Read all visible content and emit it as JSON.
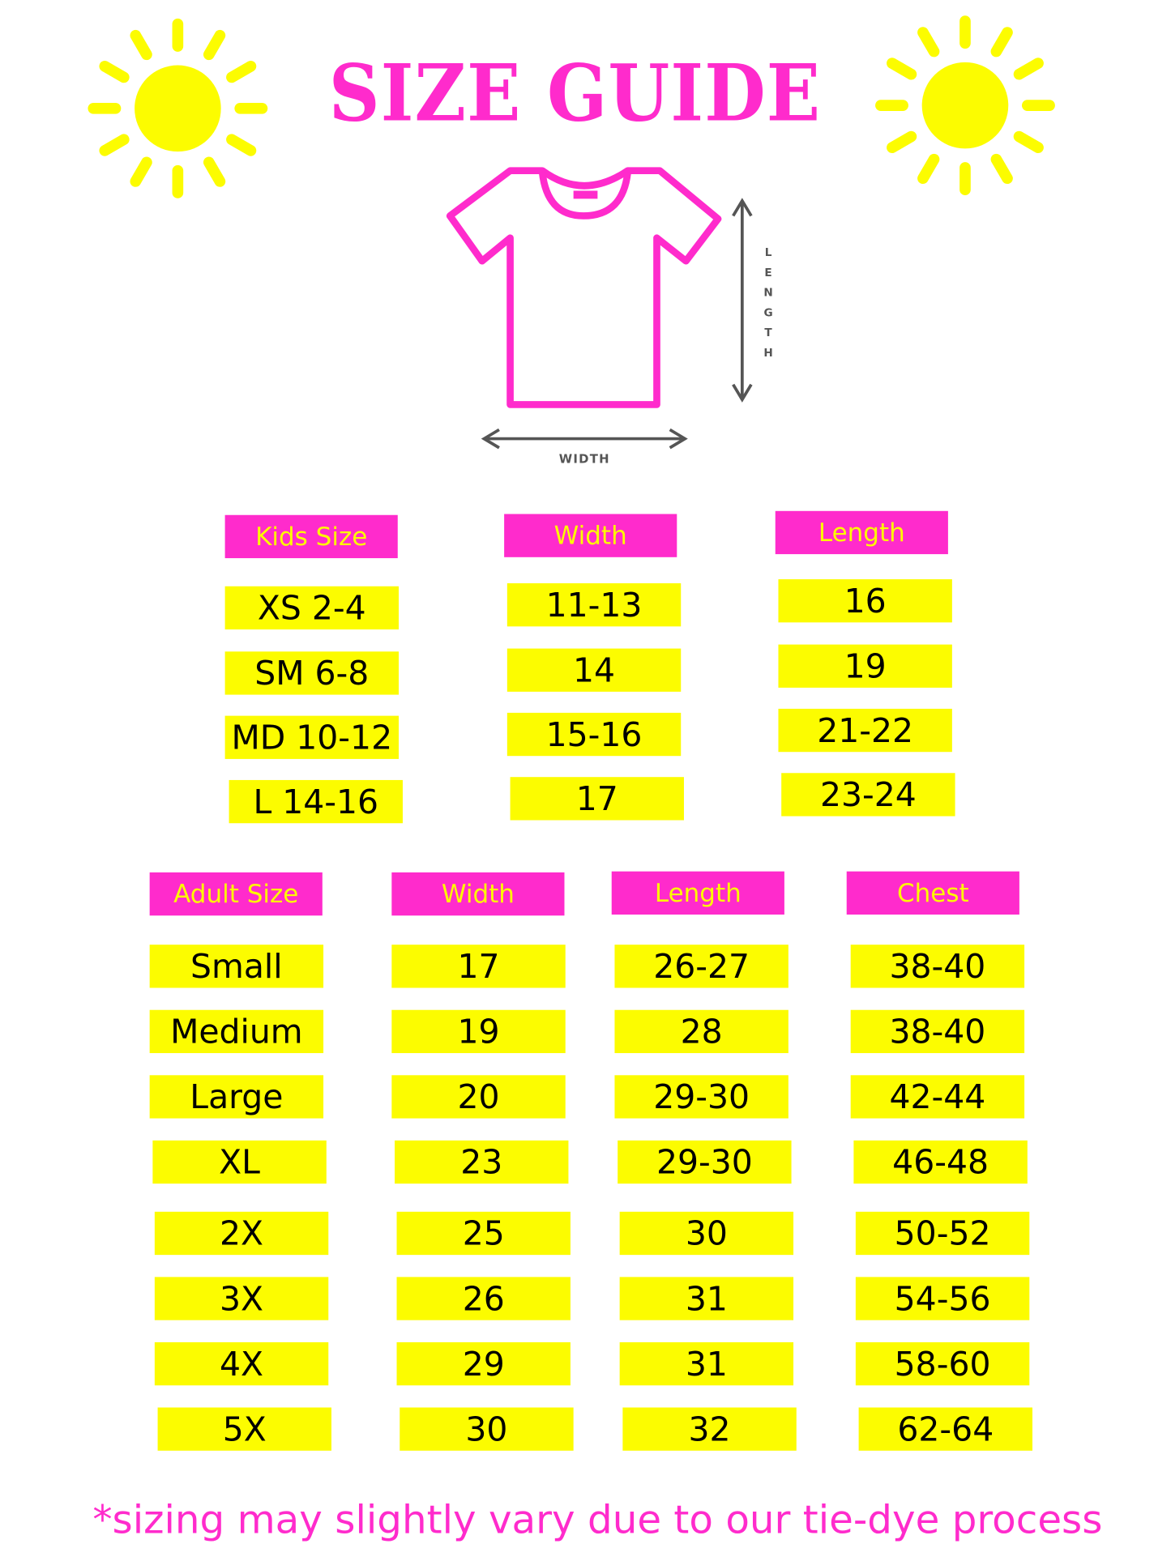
{
  "title": "SIZE GUIDE",
  "diagram": {
    "length_label": "LENGTH",
    "width_label": "WIDTH"
  },
  "kids": {
    "headers": [
      "Kids Size",
      "Width",
      "Length"
    ],
    "rows": [
      [
        "XS 2-4",
        "11-13",
        "16"
      ],
      [
        "SM 6-8",
        "14",
        "19"
      ],
      [
        "MD 10-12",
        "15-16",
        "21-22"
      ],
      [
        "L 14-16",
        "17",
        "23-24"
      ]
    ]
  },
  "adult": {
    "headers": [
      "Adult Size",
      "Width",
      "Length",
      "Chest"
    ],
    "rows": [
      [
        "Small",
        "17",
        "26-27",
        "38-40"
      ],
      [
        "Medium",
        "19",
        "28",
        "38-40"
      ],
      [
        "Large",
        "20",
        "29-30",
        "42-44"
      ],
      [
        "XL",
        "23",
        "29-30",
        "46-48"
      ],
      [
        "2X",
        "25",
        "30",
        "50-52"
      ],
      [
        "3X",
        "26",
        "31",
        "54-56"
      ],
      [
        "4X",
        "29",
        "31",
        "58-60"
      ],
      [
        "5X",
        "30",
        "32",
        "62-64"
      ]
    ]
  },
  "footnote": "*sizing may slightly vary due to our tie-dye process",
  "colors": {
    "pink": "#ff2bcc",
    "yellow": "#fcfc00",
    "arrow": "#555555"
  },
  "icons": [
    "sun-icon",
    "tshirt-icon",
    "arrow-icon"
  ]
}
